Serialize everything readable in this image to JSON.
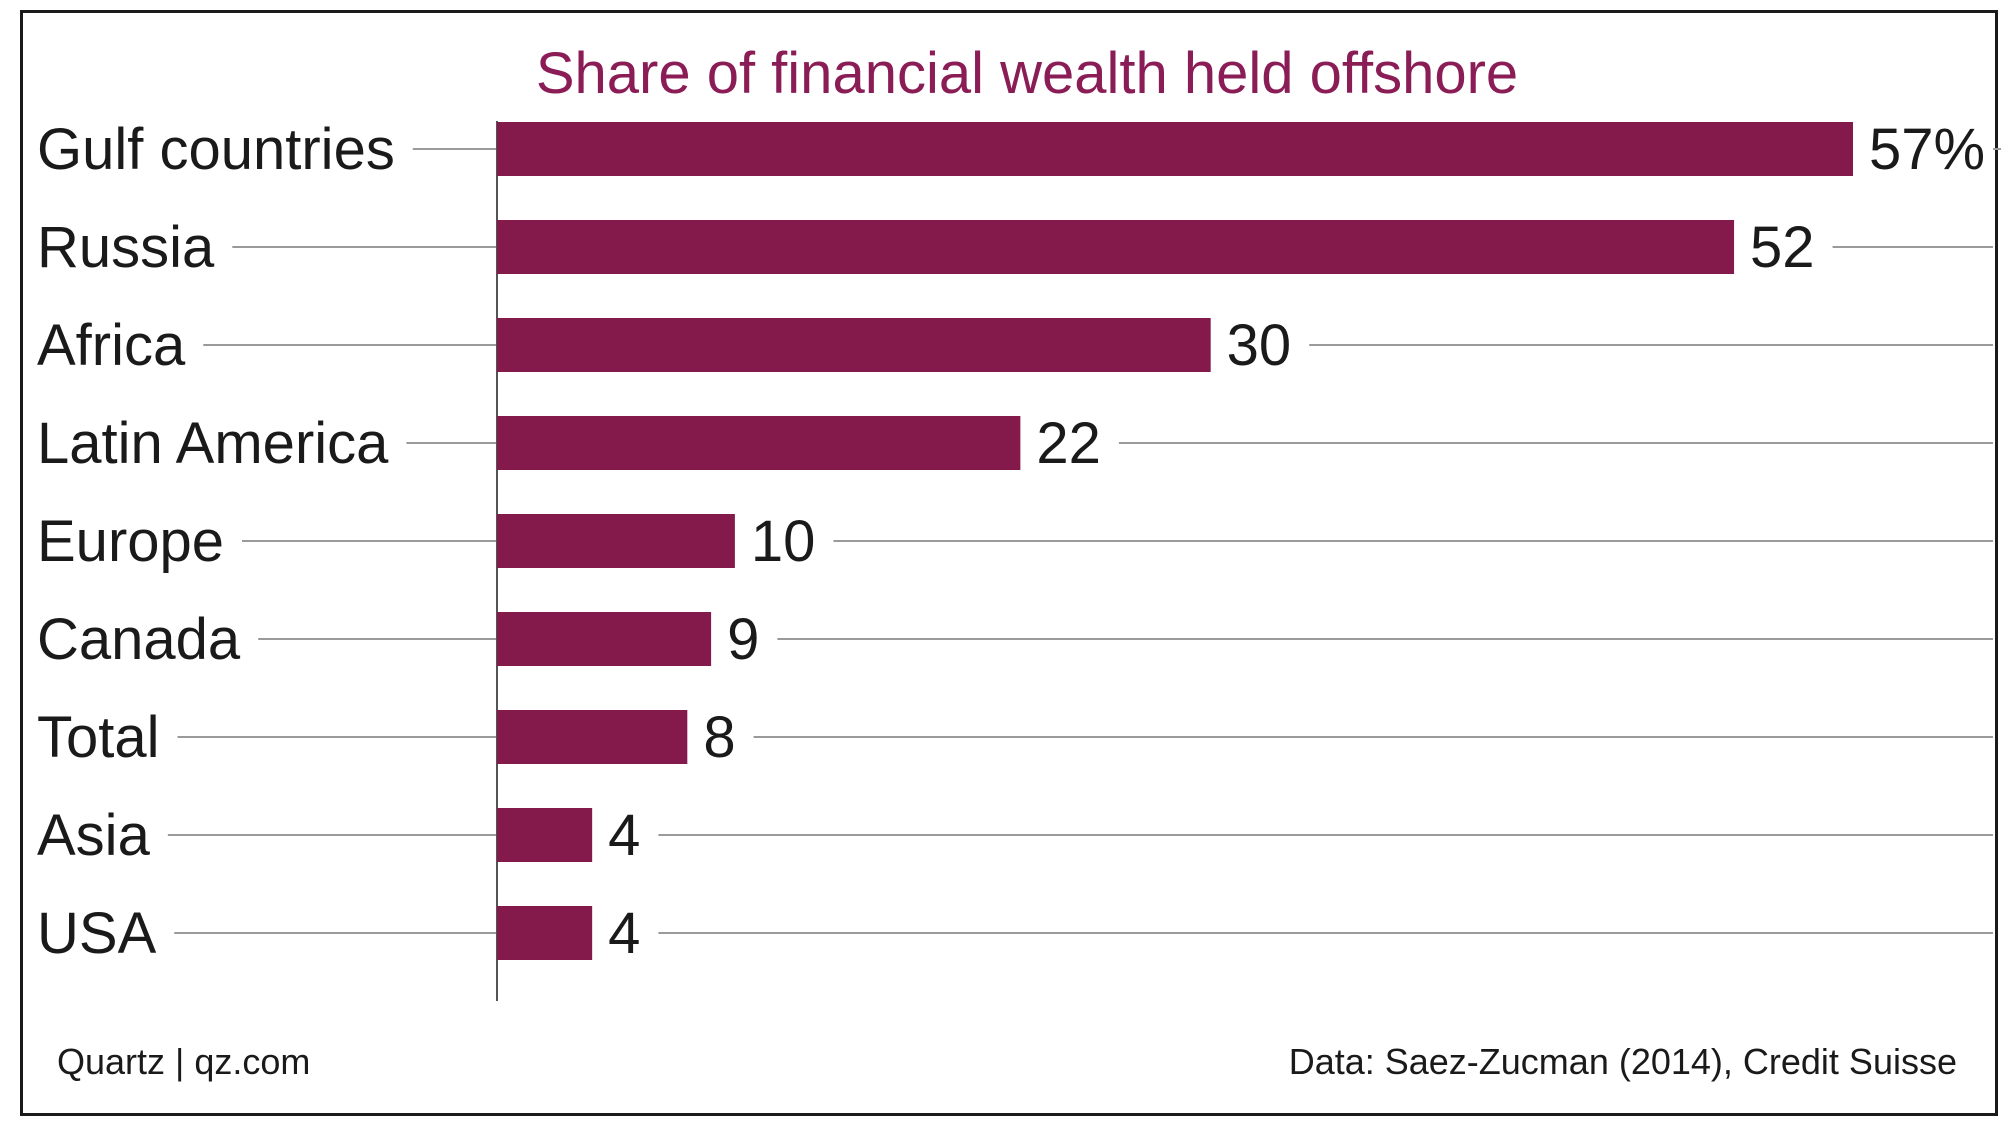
{
  "chart_data": {
    "type": "bar",
    "orientation": "horizontal",
    "title": "Share of financial wealth held offshore",
    "categories": [
      "Gulf countries",
      "Russia",
      "Africa",
      "Latin America",
      "Europe",
      "Canada",
      "Total",
      "Asia",
      "USA"
    ],
    "values": [
      57,
      52,
      30,
      22,
      10,
      9,
      8,
      4,
      4
    ],
    "value_labels": [
      "57%",
      "52",
      "30",
      "22",
      "10",
      "9",
      "8",
      "4",
      "4"
    ],
    "xlabel": "",
    "ylabel": "",
    "xlim": [
      0,
      57
    ],
    "grid": true,
    "legend": "none",
    "bar_color": "#841a4b",
    "title_color": "#8b1d56"
  },
  "footer": {
    "left": "Quartz | qz.com",
    "right": "Data: Saez-Zucman (2014), Credit Suisse"
  }
}
